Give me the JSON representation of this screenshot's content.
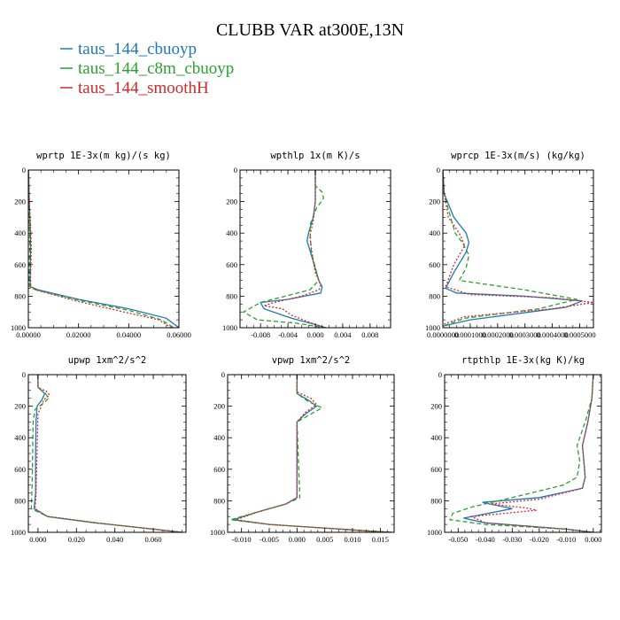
{
  "title": "CLUBB VAR at300E,13N",
  "legend": [
    {
      "name": "taus_144_cbuoyp",
      "color": "#1f77b4"
    },
    {
      "name": "taus_144_c8m_cbuoyp",
      "color": "#2ca02c"
    },
    {
      "name": "taus_144_smoothH",
      "color": "#d62728"
    }
  ],
  "chart_data": [
    {
      "type": "line",
      "title": "wprtp  1E-3x(m kg)/(s kg)",
      "xlim": [
        0.0,
        0.06
      ],
      "ylim": [
        1000,
        0
      ],
      "xticks": [
        0.0,
        0.02,
        0.04,
        0.06
      ],
      "xtick_labels": [
        "0.00000",
        "0.02000",
        "0.04000",
        "0.06000"
      ],
      "yticks": [
        0,
        200,
        400,
        600,
        800,
        1000
      ],
      "series": [
        {
          "name": "taus_144_cbuoyp",
          "x": [
            0.0001,
            0.0002,
            0.0004,
            0.0006,
            0.0008,
            0.0009,
            0.0008,
            0.0007,
            0.0009,
            0.004,
            0.02,
            0.04,
            0.055,
            0.06
          ],
          "y": [
            0,
            100,
            200,
            300,
            400,
            500,
            600,
            700,
            740,
            760,
            820,
            880,
            940,
            1000
          ]
        },
        {
          "name": "taus_144_c8m_cbuoyp",
          "x": [
            0.0001,
            0.0002,
            0.0003,
            0.0004,
            0.0005,
            0.0006,
            0.0004,
            0.0003,
            0.0005,
            0.003,
            0.02,
            0.04,
            0.053,
            0.058
          ],
          "y": [
            0,
            100,
            200,
            300,
            400,
            500,
            600,
            700,
            740,
            760,
            825,
            890,
            950,
            1000
          ]
        },
        {
          "name": "taus_144_smoothH",
          "x": [
            0.0001,
            0.0002,
            0.0004,
            0.0007,
            0.001,
            0.0012,
            0.001,
            0.0009,
            0.001,
            0.003,
            0.019,
            0.038,
            0.052,
            0.057
          ],
          "y": [
            0,
            100,
            200,
            300,
            400,
            500,
            600,
            700,
            740,
            760,
            830,
            900,
            950,
            1000
          ]
        }
      ]
    },
    {
      "type": "line",
      "title": "wpthlp  1x(m K)/s",
      "xlim": [
        -0.011,
        0.011
      ],
      "ylim": [
        1000,
        0
      ],
      "xticks": [
        -0.008,
        -0.004,
        0.0,
        0.004,
        0.008
      ],
      "xtick_labels": [
        "-0.008",
        "-0.004",
        "0.000",
        "0.004",
        "0.008"
      ],
      "yticks": [
        0,
        200,
        400,
        600,
        800,
        1000
      ],
      "series": [
        {
          "name": "taus_144_cbuoyp",
          "x": [
            0.0,
            0.0,
            -0.0003,
            -0.001,
            -0.0012,
            -0.0005,
            0.0005,
            0.001,
            0.0008,
            -0.004,
            -0.008,
            -0.0075,
            -0.0035,
            0.0,
            0.0015
          ],
          "y": [
            0,
            200,
            300,
            400,
            450,
            550,
            700,
            740,
            780,
            820,
            840,
            880,
            940,
            980,
            1000
          ]
        },
        {
          "name": "taus_144_c8m_cbuoyp",
          "x": [
            0.0,
            0.0,
            0.001,
            0.0012,
            0.0002,
            -0.0008,
            -0.0006,
            0.0005,
            -0.0008,
            -0.008,
            -0.0105,
            -0.0085,
            -0.003,
            0.0,
            0.001
          ],
          "y": [
            0,
            100,
            140,
            180,
            240,
            350,
            520,
            700,
            760,
            840,
            900,
            950,
            970,
            990,
            1000
          ]
        },
        {
          "name": "taus_144_smoothH",
          "x": [
            0.0,
            0.0,
            -0.0003,
            -0.0008,
            -0.0005,
            0.0,
            0.0008,
            0.0005,
            -0.002,
            -0.006,
            -0.0075,
            -0.0048,
            -0.0035,
            0.0,
            0.0015
          ],
          "y": [
            0,
            200,
            320,
            420,
            520,
            650,
            730,
            760,
            800,
            840,
            860,
            880,
            920,
            980,
            1000
          ]
        }
      ]
    },
    {
      "type": "line",
      "title": "wprcp  1E-3x(m/s) (kg/kg)",
      "xlim": [
        0.0,
        0.00055
      ],
      "ylim": [
        1000,
        0
      ],
      "xticks": [
        0.0,
        0.0001,
        0.0002,
        0.0003,
        0.0004,
        0.0005
      ],
      "xtick_labels": [
        "0.0000000",
        "0.0001000",
        "0.0002000",
        "0.0003000",
        "0.0004000",
        "0.0005000"
      ],
      "yticks": [
        0,
        200,
        400,
        600,
        800,
        1000
      ],
      "series": [
        {
          "name": "taus_144_cbuoyp",
          "x": [
            0.0,
            5e-06,
            4e-05,
            8.5e-05,
            9.5e-05,
            8.5e-05,
            4e-05,
            1e-05,
            5e-05,
            0.0003,
            0.00051,
            0.00045,
            0.0001,
            0.0
          ],
          "y": [
            0,
            150,
            300,
            400,
            460,
            520,
            650,
            750,
            780,
            800,
            830,
            870,
            950,
            990
          ]
        },
        {
          "name": "taus_144_c8m_cbuoyp",
          "x": [
            0.0,
            5e-06,
            2e-05,
            4.5e-05,
            7.5e-05,
            9.5e-05,
            8.5e-05,
            6e-05,
            0.0003,
            0.00049,
            0.00035,
            8e-05,
            0.0
          ],
          "y": [
            0,
            150,
            250,
            400,
            470,
            540,
            620,
            700,
            760,
            820,
            880,
            940,
            990
          ]
        },
        {
          "name": "taus_144_smoothH",
          "x": [
            0.0,
            5e-06,
            2e-05,
            6e-05,
            8e-05,
            4e-05,
            1e-05,
            0.0001,
            0.0004,
            0.00055,
            0.0004,
            8e-05,
            0.0
          ],
          "y": [
            0,
            150,
            300,
            400,
            480,
            600,
            740,
            790,
            810,
            840,
            880,
            930,
            980
          ]
        }
      ]
    },
    {
      "type": "line",
      "title": "upwp  1xm^2/s^2",
      "xlim": [
        -0.005,
        0.077
      ],
      "ylim": [
        1000,
        0
      ],
      "xticks": [
        0.0,
        0.02,
        0.04,
        0.06
      ],
      "xtick_labels": [
        "0.000",
        "0.020",
        "0.040",
        "0.060"
      ],
      "yticks": [
        0,
        200,
        400,
        600,
        800,
        1000
      ],
      "series": [
        {
          "name": "taus_144_cbuoyp",
          "x": [
            0.0,
            0.0,
            0.0035,
            0.002,
            -0.0005,
            -0.001,
            -0.0012,
            -0.0012,
            -0.002,
            0.005,
            0.03,
            0.06,
            0.075
          ],
          "y": [
            0,
            80,
            120,
            160,
            200,
            300,
            500,
            750,
            850,
            900,
            940,
            980,
            1000
          ]
        },
        {
          "name": "taus_144_c8m_cbuoyp",
          "x": [
            0.0,
            0.0,
            0.004,
            0.0055,
            0.003,
            -0.0015,
            -0.0025,
            -0.003,
            -0.0035,
            0.005,
            0.03,
            0.06,
            0.075
          ],
          "y": [
            0,
            80,
            120,
            150,
            180,
            220,
            300,
            700,
            850,
            900,
            940,
            980,
            1000
          ]
        },
        {
          "name": "taus_144_smoothH",
          "x": [
            0.0,
            0.0,
            0.005,
            0.006,
            0.003,
            0.0,
            -0.0005,
            -0.001,
            -0.0015,
            0.005,
            0.03,
            0.06,
            0.074
          ],
          "y": [
            0,
            80,
            110,
            130,
            160,
            250,
            500,
            750,
            850,
            900,
            940,
            980,
            1000
          ]
        }
      ]
    },
    {
      "type": "line",
      "title": "vpwp  1xm^2/s^2",
      "xlim": [
        -0.0125,
        0.0175
      ],
      "ylim": [
        1000,
        0
      ],
      "xticks": [
        -0.01,
        -0.005,
        0.0,
        0.005,
        0.01,
        0.015
      ],
      "xtick_labels": [
        "-0.010",
        "-0.005",
        "0.000",
        "0.005",
        "0.010",
        "0.015"
      ],
      "yticks": [
        0,
        200,
        400,
        600,
        800,
        1000
      ],
      "series": [
        {
          "name": "taus_144_cbuoyp",
          "x": [
            0.0,
            0.0,
            0.002,
            0.0035,
            0.0015,
            0.0,
            0.0,
            -0.002,
            -0.007,
            -0.0115,
            -0.005,
            0.01,
            0.0165
          ],
          "y": [
            0,
            120,
            160,
            200,
            250,
            300,
            780,
            820,
            870,
            920,
            950,
            985,
            1000
          ]
        },
        {
          "name": "taus_144_c8m_cbuoyp",
          "x": [
            0.0,
            0.0,
            0.002,
            0.0045,
            0.002,
            0.0,
            0.0005,
            -0.002,
            -0.007,
            -0.012,
            -0.005,
            0.01,
            0.0175
          ],
          "y": [
            0,
            120,
            170,
            210,
            260,
            300,
            780,
            820,
            870,
            920,
            950,
            985,
            1000
          ]
        },
        {
          "name": "taus_144_smoothH",
          "x": [
            0.0,
            0.0,
            0.0025,
            0.0035,
            0.0015,
            0.0,
            0.0,
            -0.002,
            -0.007,
            -0.011,
            -0.005,
            0.01,
            0.0165
          ],
          "y": [
            0,
            110,
            150,
            190,
            240,
            300,
            780,
            820,
            870,
            920,
            950,
            985,
            1000
          ]
        }
      ]
    },
    {
      "type": "line",
      "title": "rtpthlp  1E-3x(kg K)/kg",
      "xlim": [
        -0.055,
        0.003
      ],
      "ylim": [
        1000,
        0
      ],
      "xticks": [
        -0.05,
        -0.04,
        -0.03,
        -0.02,
        -0.01,
        0.0
      ],
      "xtick_labels": [
        "-0.050",
        "-0.040",
        "-0.030",
        "-0.020",
        "-0.010",
        "0.000"
      ],
      "yticks": [
        0,
        200,
        400,
        600,
        800,
        1000
      ],
      "series": [
        {
          "name": "taus_144_cbuoyp",
          "x": [
            0.0,
            -0.0005,
            -0.002,
            -0.004,
            -0.0035,
            -0.003,
            -0.004,
            -0.02,
            -0.041,
            -0.03,
            -0.048,
            -0.04,
            -0.01,
            0.0
          ],
          "y": [
            0,
            150,
            300,
            450,
            550,
            650,
            720,
            780,
            810,
            850,
            910,
            940,
            980,
            1000
          ]
        },
        {
          "name": "taus_144_c8m_cbuoyp",
          "x": [
            0.0,
            -0.0005,
            -0.003,
            -0.006,
            -0.005,
            -0.006,
            -0.011,
            -0.03,
            -0.045,
            -0.052,
            -0.053,
            -0.04,
            -0.01,
            0.0
          ],
          "y": [
            0,
            150,
            300,
            450,
            550,
            650,
            700,
            780,
            840,
            880,
            920,
            950,
            980,
            1000
          ]
        },
        {
          "name": "taus_144_smoothH",
          "x": [
            0.0,
            -0.0005,
            -0.002,
            -0.004,
            -0.0035,
            -0.003,
            -0.004,
            -0.02,
            -0.038,
            -0.025,
            -0.021,
            -0.045,
            -0.04,
            -0.01,
            0.0
          ],
          "y": [
            0,
            150,
            300,
            450,
            550,
            650,
            720,
            790,
            820,
            845,
            860,
            900,
            940,
            980,
            1000
          ]
        }
      ]
    }
  ]
}
